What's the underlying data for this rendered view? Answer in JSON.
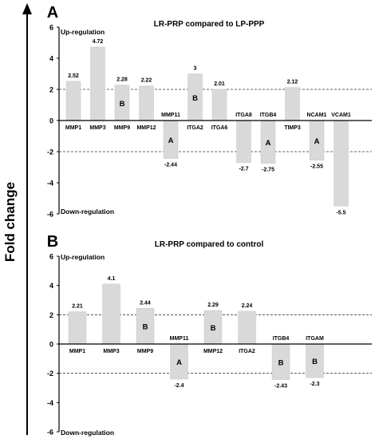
{
  "figure": {
    "y_axis_title": "Fold change",
    "colors": {
      "bar": "#d9d9d9",
      "bar_edge": "#c8c8c8",
      "text": "#000000",
      "axis": "#000000"
    }
  },
  "chart_data": [
    {
      "type": "bar",
      "panel_label": "A",
      "title": "LR-PRP compared to LP-PPP",
      "categories": [
        "MMP1",
        "MMP3",
        "MMP9",
        "MMP12",
        "MMP11",
        "ITGA2",
        "ITGA6",
        "ITGA8",
        "ITGB4",
        "TIMP3",
        "NCAM1",
        "VCAM1"
      ],
      "values": [
        2.52,
        4.72,
        2.28,
        2.22,
        -2.44,
        3,
        2.01,
        -2.7,
        -2.75,
        2.12,
        -2.55,
        -5.5
      ],
      "value_labels": [
        "2.52",
        "4.72",
        "2.28",
        "2.22",
        "-2.44",
        "3",
        "2.01",
        "-2.7",
        "-2.75",
        "2.12",
        "-2.55",
        "-5.5"
      ],
      "bar_letters": [
        "",
        "",
        "B",
        "",
        "A",
        "B",
        "",
        "",
        "A",
        "",
        "A",
        ""
      ],
      "ylim": [
        -6,
        6
      ],
      "yticks": [
        6,
        4,
        2,
        0,
        -2,
        -4,
        -6
      ],
      "reference_lines": [
        2,
        -2
      ],
      "annotations": [
        "Up-regulation",
        "Down-regulation"
      ],
      "grid": false,
      "xlabel": "",
      "ylabel": "Fold change"
    },
    {
      "type": "bar",
      "panel_label": "B",
      "title": "LR-PRP compared to control",
      "categories": [
        "MMP1",
        "MMP3",
        "MMP9",
        "MMP11",
        "MMP12",
        "ITGA2",
        "ITGB4",
        "ITGAM"
      ],
      "values": [
        2.21,
        4.1,
        2.44,
        -2.4,
        2.29,
        2.24,
        -2.43,
        -2.3
      ],
      "value_labels": [
        "2.21",
        "4.1",
        "2.44",
        "-2.4",
        "2.29",
        "2.24",
        "-2.43",
        "-2.3"
      ],
      "bar_letters": [
        "",
        "",
        "B",
        "A",
        "B",
        "",
        "B",
        "B"
      ],
      "ylim": [
        -6,
        6
      ],
      "yticks": [
        6,
        4,
        2,
        0,
        -2,
        -4,
        -6
      ],
      "reference_lines": [
        2,
        -2
      ],
      "annotations": [
        "Up-regulation",
        "Down-regulation"
      ],
      "grid": false,
      "xlabel": "",
      "ylabel": "Fold change"
    }
  ]
}
